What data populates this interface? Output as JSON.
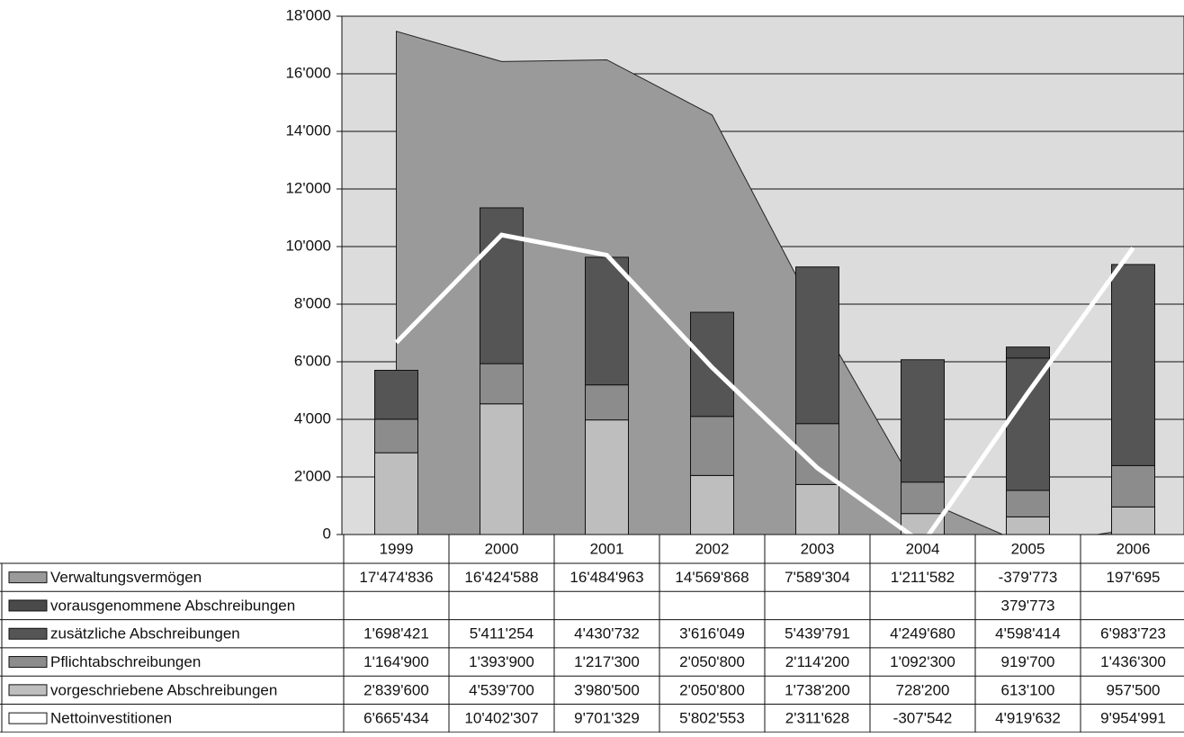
{
  "chart_data": {
    "type": "bar",
    "categories": [
      "1999",
      "2000",
      "2001",
      "2002",
      "2003",
      "2004",
      "2005",
      "2006"
    ],
    "ylim": [
      0,
      18000
    ],
    "yticks": [
      0,
      {
        "value": 2000,
        "label": "2'000"
      },
      {
        "value": 4000,
        "label": "4'000"
      },
      {
        "value": 6000,
        "label": "6'000"
      },
      {
        "value": 8000,
        "label": "8'000"
      },
      {
        "value": 10000,
        "label": "10'000"
      },
      {
        "value": 12000,
        "label": "12'000"
      },
      {
        "value": 14000,
        "label": "14'000"
      },
      {
        "value": 16000,
        "label": "16'000"
      },
      {
        "value": 18000,
        "label": "18'000"
      }
    ],
    "grid": true,
    "series": [
      {
        "name": "Verwaltungsvermögen",
        "type": "area",
        "color": "#9a9a9a",
        "values": [
          17474.836,
          16424.588,
          16484.963,
          14569.868,
          7589.304,
          1211.582,
          -379.773,
          197.695
        ],
        "value_labels": [
          "17'474'836",
          "16'424'588",
          "16'484'963",
          "14'569'868",
          "7'589'304",
          "1'211'582",
          "-379'773",
          "197'695"
        ]
      },
      {
        "name": "vorausgenommene Abschreibungen",
        "type": "bar",
        "color": "#4a4a4a",
        "values": [
          null,
          null,
          null,
          null,
          null,
          null,
          379.773,
          null
        ],
        "value_labels": [
          null,
          null,
          null,
          null,
          null,
          null,
          "379'773",
          null
        ]
      },
      {
        "name": "zusätzliche Abschreibungen",
        "type": "bar",
        "color": "#555555",
        "values": [
          1698.421,
          5411.254,
          4430.732,
          3616.049,
          5439.791,
          4249.68,
          4598.414,
          6983.723
        ],
        "value_labels": [
          "1'698'421",
          "5'411'254",
          "4'430'732",
          "3'616'049",
          "5'439'791",
          "4'249'680",
          "4'598'414",
          "6'983'723"
        ]
      },
      {
        "name": "Pflichtabschreibungen",
        "type": "bar",
        "color": "#8c8c8c",
        "values": [
          1164.9,
          1393.9,
          1217.3,
          2050.8,
          2114.2,
          1092.3,
          919.7,
          1436.3
        ],
        "value_labels": [
          "1'164'900",
          "1'393'900",
          "1'217'300",
          "2'050'800",
          "2'114'200",
          "1'092'300",
          "919'700",
          "1'436'300"
        ]
      },
      {
        "name": "vorgeschriebene Abschreibungen",
        "type": "bar",
        "color": "#bebebe",
        "values": [
          2839.6,
          4539.7,
          3980.5,
          2050.8,
          1738.2,
          728.2,
          613.1,
          957.5
        ],
        "value_labels": [
          "2'839'600",
          "4'539'700",
          "3'980'500",
          "2'050'800",
          "1'738'200",
          "728'200",
          "613'100",
          "957'500"
        ]
      },
      {
        "name": "Nettoinvestitionen",
        "type": "line",
        "color": "#ffffff",
        "values": [
          6665.434,
          10402.307,
          9701.329,
          5802.553,
          2311.628,
          -307.542,
          4919.632,
          9954.991
        ],
        "value_labels": [
          "6'665'434",
          "10'402'307",
          "9'701'329",
          "5'802'553",
          "2'311'628",
          "-307'542",
          "4'919'632",
          "9'954'991"
        ]
      }
    ]
  }
}
